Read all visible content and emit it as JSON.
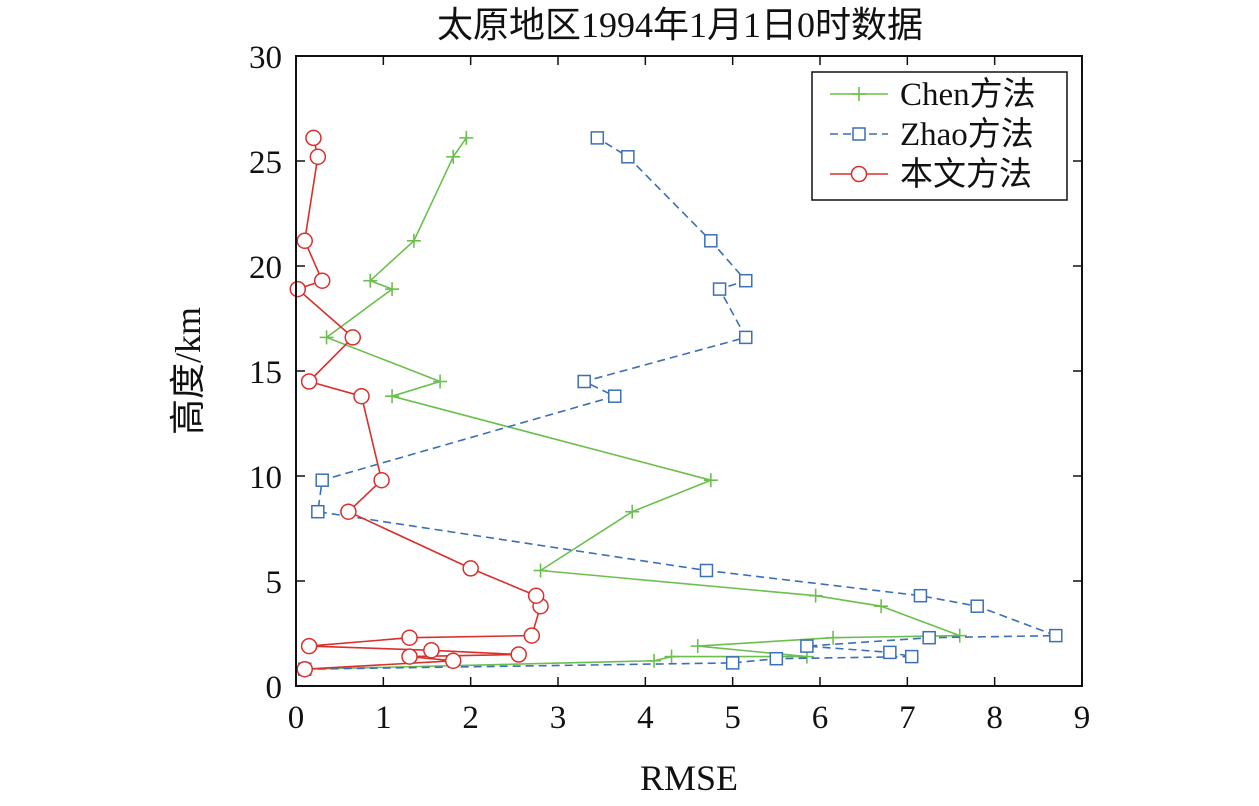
{
  "chart_data": {
    "type": "line",
    "title": "太原地区1994年1月1日0时数据",
    "xlabel": "RMSE",
    "ylabel": "高度/km",
    "xlim": [
      0,
      9
    ],
    "ylim": [
      0,
      30
    ],
    "xticks": [
      0,
      1,
      2,
      3,
      4,
      5,
      6,
      7,
      8,
      9
    ],
    "yticks": [
      0,
      5,
      10,
      15,
      20,
      25,
      30
    ],
    "xtick_labels": [
      "0",
      "1",
      "2",
      "3",
      "4",
      "5",
      "6",
      "7",
      "8",
      "9"
    ],
    "ytick_labels": [
      "0",
      "5",
      "10",
      "15",
      "20",
      "25",
      "30"
    ],
    "grid": false,
    "legend_position": "top-right",
    "series": [
      {
        "name": "Chen方法",
        "color": "#6bbf4e",
        "marker": "plus",
        "line_style": "solid",
        "points": [
          [
            0.1,
            0.8
          ],
          [
            4.1,
            1.2
          ],
          [
            4.3,
            1.4
          ],
          [
            5.85,
            1.4
          ],
          [
            4.6,
            1.9
          ],
          [
            6.15,
            2.3
          ],
          [
            7.6,
            2.4
          ],
          [
            6.7,
            3.8
          ],
          [
            5.95,
            4.3
          ],
          [
            2.8,
            5.5
          ],
          [
            3.85,
            8.3
          ],
          [
            4.75,
            9.8
          ],
          [
            1.1,
            13.8
          ],
          [
            1.65,
            14.5
          ],
          [
            0.35,
            16.6
          ],
          [
            1.1,
            18.9
          ],
          [
            0.85,
            19.3
          ],
          [
            1.35,
            21.2
          ],
          [
            1.8,
            25.2
          ],
          [
            1.95,
            26.1
          ]
        ]
      },
      {
        "name": "Zhao方法",
        "color": "#3b6fb6",
        "marker": "square",
        "line_style": "dashed",
        "points": [
          [
            0.1,
            0.8
          ],
          [
            5.0,
            1.1
          ],
          [
            5.5,
            1.3
          ],
          [
            7.05,
            1.4
          ],
          [
            6.8,
            1.6
          ],
          [
            5.85,
            1.9
          ],
          [
            7.25,
            2.3
          ],
          [
            8.7,
            2.4
          ],
          [
            7.8,
            3.8
          ],
          [
            7.15,
            4.3
          ],
          [
            4.7,
            5.5
          ],
          [
            0.25,
            8.3
          ],
          [
            0.3,
            9.8
          ],
          [
            3.65,
            13.8
          ],
          [
            3.3,
            14.5
          ],
          [
            5.15,
            16.6
          ],
          [
            4.85,
            18.9
          ],
          [
            5.15,
            19.3
          ],
          [
            4.75,
            21.2
          ],
          [
            3.8,
            25.2
          ],
          [
            3.45,
            26.1
          ]
        ]
      },
      {
        "name": "本文方法",
        "color": "#d9302c",
        "marker": "circle",
        "line_style": "solid",
        "points": [
          [
            0.1,
            0.8
          ],
          [
            1.8,
            1.2
          ],
          [
            1.3,
            1.4
          ],
          [
            2.55,
            1.5
          ],
          [
            1.55,
            1.7
          ],
          [
            0.15,
            1.9
          ],
          [
            1.3,
            2.3
          ],
          [
            2.7,
            2.4
          ],
          [
            2.8,
            3.8
          ],
          [
            2.75,
            4.3
          ],
          [
            2.0,
            5.6
          ],
          [
            0.6,
            8.3
          ],
          [
            0.98,
            9.8
          ],
          [
            0.75,
            13.8
          ],
          [
            0.15,
            14.5
          ],
          [
            0.65,
            16.6
          ],
          [
            0.02,
            18.9
          ],
          [
            0.3,
            19.3
          ],
          [
            0.1,
            21.2
          ],
          [
            0.25,
            25.2
          ],
          [
            0.2,
            26.1
          ]
        ]
      }
    ]
  }
}
